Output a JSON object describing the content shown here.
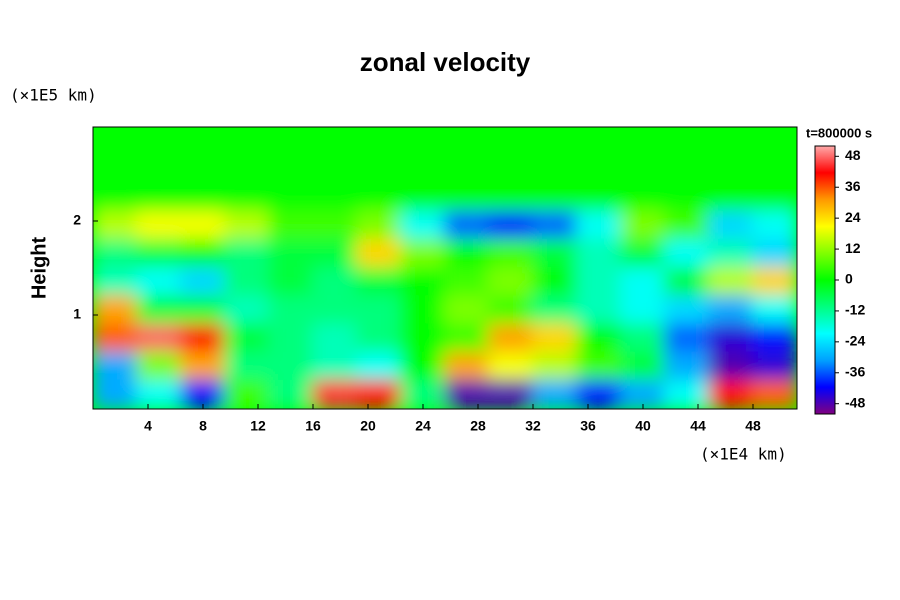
{
  "chart_data": {
    "type": "contour",
    "title": "zonal velocity",
    "y_unit": "(×1E5 km)",
    "x_unit": "(×1E4 km)",
    "ylabel": "Height",
    "colorbar_label": "t=800000 s",
    "xlim": [
      0,
      51.2
    ],
    "ylim": [
      0,
      3
    ],
    "xticks": [
      4,
      8,
      12,
      16,
      20,
      24,
      28,
      32,
      36,
      40,
      44,
      48
    ],
    "yticks": [
      1,
      2
    ],
    "clim": [
      -52,
      52
    ],
    "cticks": [
      48,
      36,
      24,
      12,
      0,
      -12,
      -24,
      -36,
      -48
    ],
    "colormap": [
      "#800080",
      "#0000ff",
      "#00a0ff",
      "#00ffff",
      "#00ff80",
      "#00ff00",
      "#80ff00",
      "#ffff00",
      "#ff9900",
      "#ff0000",
      "#ffaaaa"
    ],
    "z": [
      [
        0,
        0,
        0,
        0,
        0,
        0,
        0,
        0,
        0,
        0,
        0,
        0,
        0,
        0,
        0,
        0
      ],
      [
        0,
        0,
        0,
        0,
        0,
        0,
        0,
        0,
        0,
        0,
        0,
        0,
        0,
        0,
        0,
        0
      ],
      [
        0,
        0,
        0,
        0,
        0,
        0,
        0,
        0,
        0,
        0,
        0,
        0,
        0,
        0,
        0,
        0
      ],
      [
        15,
        20,
        20,
        15,
        5,
        5,
        10,
        -20,
        -35,
        -40,
        -35,
        -20,
        10,
        5,
        -25,
        -20
      ],
      [
        -10,
        -5,
        0,
        -10,
        -5,
        -5,
        25,
        10,
        0,
        5,
        -5,
        -15,
        -5,
        -20,
        -15,
        -25
      ],
      [
        -15,
        -20,
        -25,
        -10,
        -5,
        -10,
        -5,
        0,
        5,
        10,
        0,
        -15,
        -20,
        -5,
        15,
        25
      ],
      [
        30,
        -5,
        -5,
        -15,
        -10,
        -10,
        -10,
        0,
        10,
        5,
        -10,
        -15,
        -20,
        -25,
        -30,
        -20
      ],
      [
        35,
        48,
        40,
        -5,
        -10,
        -15,
        -10,
        0,
        5,
        30,
        25,
        0,
        -10,
        -35,
        -45,
        -40
      ],
      [
        -30,
        10,
        30,
        -10,
        -10,
        -15,
        -20,
        0,
        30,
        20,
        15,
        5,
        -5,
        -30,
        -48,
        -45
      ],
      [
        -30,
        -20,
        -40,
        5,
        -10,
        45,
        40,
        -10,
        -48,
        -48,
        -30,
        -40,
        -30,
        -20,
        40,
        35
      ]
    ]
  }
}
